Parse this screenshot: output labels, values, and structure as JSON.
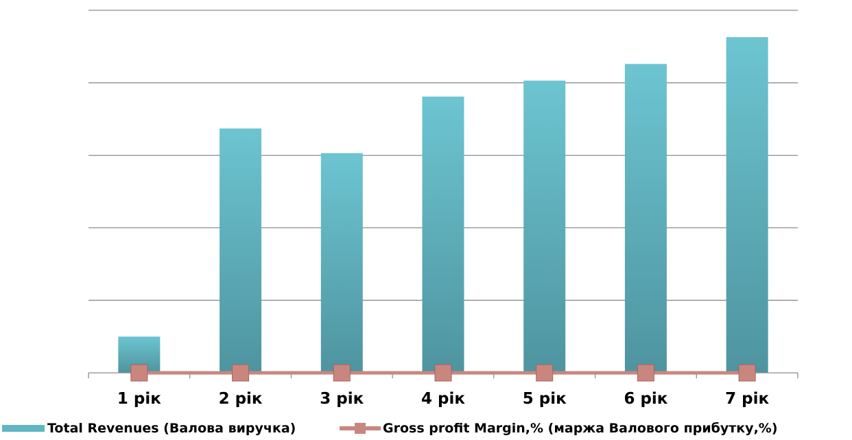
{
  "chart_data": {
    "type": "bar",
    "categories": [
      "1 рік",
      "2 рік",
      "3 рік",
      "4 рік",
      "5 рік",
      "6 рік",
      "7 рік"
    ],
    "ylim": [
      0,
      5
    ],
    "grid": true,
    "legend_position": "bottom",
    "series": [
      {
        "name": "Total Revenues (Валова виручка)",
        "type": "bar",
        "color": "#5fb6c4",
        "values": [
          0.5,
          3.37,
          3.03,
          3.81,
          4.03,
          4.26,
          4.63
        ]
      },
      {
        "name": "Gross profit Margin,% (маржа Валового прибутку,%)",
        "type": "line",
        "color": "#c0504d",
        "values": [
          0,
          0,
          0,
          0,
          0,
          0,
          0
        ]
      }
    ]
  }
}
